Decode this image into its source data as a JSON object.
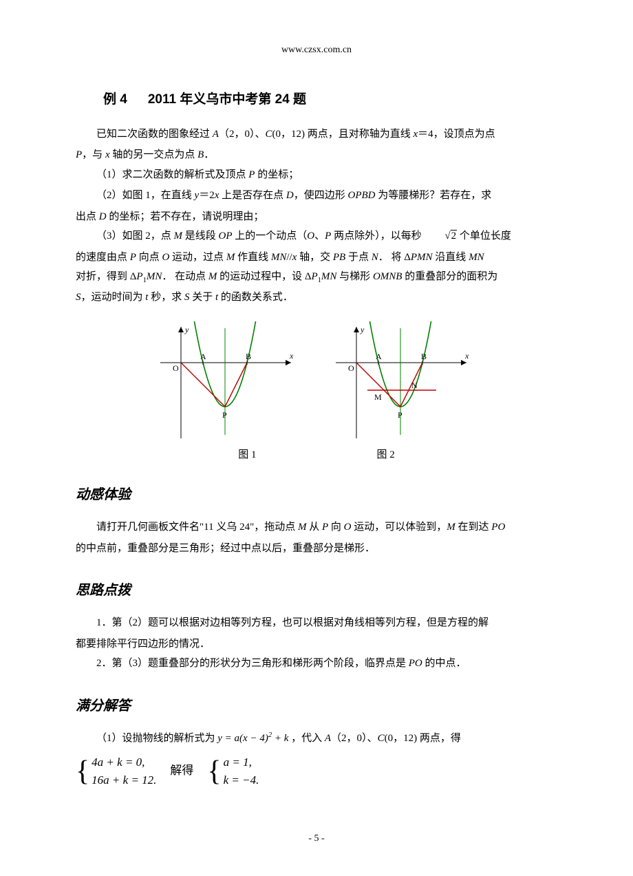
{
  "header": {
    "url": "www.czsx.com.cn"
  },
  "title": {
    "prefix": "例 4",
    "main": "2011 年义乌市中考第 24 题"
  },
  "p_intro1": "已知二次函数的图象经过 ",
  "p_intro2": "（2，0）、",
  "p_intro3": "(0，12) 两点，且对称轴为直线 ",
  "p_intro4": "＝4，设顶点为点",
  "p_intro5_line2a": "，与 ",
  "p_intro5_line2b": " 轴的另一交点为点 ",
  "p_intro5_line2c": "．",
  "q1": "（1）求二次函数的解析式及顶点 ",
  "q1b": " 的坐标；",
  "q2a": "（2）如图 1，在直线 ",
  "q2eq": "＝2",
  "q2b": " 上是否存在点 ",
  "q2c": "，使四边形 ",
  "q2d": " 为等腰梯形？若存在，求",
  "q2_line2a": "出点 ",
  "q2_line2b": " 的坐标；若不存在，请说明理由；",
  "q3a": "（3）如图 2，点 ",
  "q3b": " 是线段 ",
  "q3c": " 上的一个动点（",
  "q3d": "、",
  "q3e": " 两点除外），以每秒 ",
  "q3f": " 个单位长度",
  "q3_l2a": "的速度由点 ",
  "q3_l2b": " 向点 ",
  "q3_l2c": " 运动，过点 ",
  "q3_l2d": " 作直线 ",
  "q3_l2e": " 轴，交 ",
  "q3_l2f": " 于点 ",
  "q3_l2g": "．  将 Δ",
  "q3_l2h": " 沿直线 ",
  "q3_l3a": "对折，得到 Δ",
  "q3_l3b": "．  在动点 ",
  "q3_l3c": " 的运动过程中，设 Δ",
  "q3_l3d": " 与梯形 ",
  "q3_l3e": " 的重叠部分的面积为",
  "q3_l4a": "，运动时间为 ",
  "q3_l4b": " 秒，求 ",
  "q3_l4c": " 关于 ",
  "q3_l4d": " 的函数关系式．",
  "fig_caps": {
    "f1": "图 1",
    "f2": "图 2"
  },
  "sec1": {
    "title": "动感体验"
  },
  "sec1_p1a": "请打开几何画板文件名\"11 义乌 24\"，拖动点 ",
  "sec1_p1b": " 从 ",
  "sec1_p1c": " 向 ",
  "sec1_p1d": " 运动，可以体验到，",
  "sec1_p1e": " 在到达 ",
  "sec1_l2": "的中点前，重叠部分是三角形；经过中点以后，重叠部分是梯形．",
  "sec2": {
    "title": "思路点拨"
  },
  "sec2_p1a": "1．第（2）题可以根据对边相等列方程，也可以根据对角线相等列方程，但是方程的解",
  "sec2_p1b": "都要排除平行四边形的情况．",
  "sec2_p2a": "2．第（3）题重叠部分的形状分为三角形和梯形两个阶段，临界点是 ",
  "sec2_p2b": " 的中点．",
  "sec3": {
    "title": "满分解答"
  },
  "sec3_p1a": "（1）设抛物线的解析式为 ",
  "sec3_p1b": " ，代入 ",
  "sec3_p1c": "（2，0）、",
  "sec3_p1d": "(0，12) 两点，得",
  "sys1": {
    "l1": "4a + k = 0,",
    "l2": "16a + k = 12."
  },
  "sys_mid": "解得",
  "sys2": {
    "l1": "a = 1,",
    "l2": "k = −4."
  },
  "chart": {
    "axis_color": "#000000",
    "parabola_color": "#008000",
    "line_op_color": "#c00000",
    "line_pb_color": "#c00000",
    "line_mn_color": "#c00000",
    "vertex_axis_color": "#008000",
    "font_size": 12,
    "labels": {
      "O": "O",
      "A": "A",
      "B": "B",
      "P": "P",
      "M": "M",
      "N": "N",
      "x": "x",
      "y": "y"
    }
  },
  "footer": {
    "page": "- 5 -"
  }
}
